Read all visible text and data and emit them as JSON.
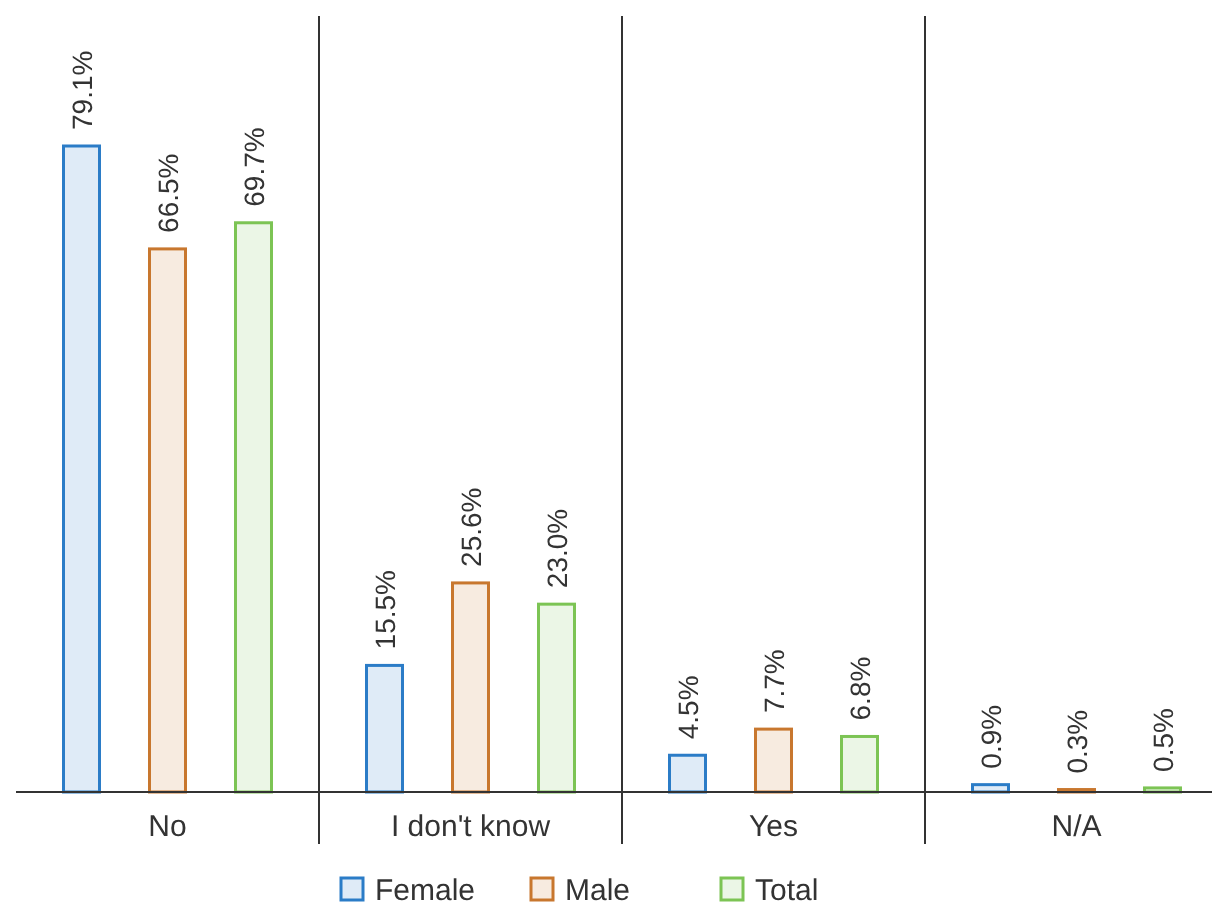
{
  "chart_data": {
    "type": "bar",
    "categories": [
      "No",
      "I don't know",
      "Yes",
      "N/A"
    ],
    "series": [
      {
        "name": "Female",
        "color": "#2b7cc7",
        "values": [
          79.1,
          15.5,
          4.5,
          0.9
        ],
        "value_labels": [
          "79.1%",
          "15.5%",
          "4.5%",
          "0.9%"
        ]
      },
      {
        "name": "Male",
        "color": "#c8772e",
        "values": [
          66.5,
          25.6,
          7.7,
          0.3
        ],
        "value_labels": [
          "66.5%",
          "25.6%",
          "7.7%",
          "0.3%"
        ]
      },
      {
        "name": "Total",
        "color": "#7cc454",
        "values": [
          69.7,
          23.0,
          6.8,
          0.5
        ],
        "value_labels": [
          "69.7%",
          "23.0%",
          "6.8%",
          "0.5%"
        ]
      }
    ],
    "legend": "bottom",
    "grid": "x"
  }
}
